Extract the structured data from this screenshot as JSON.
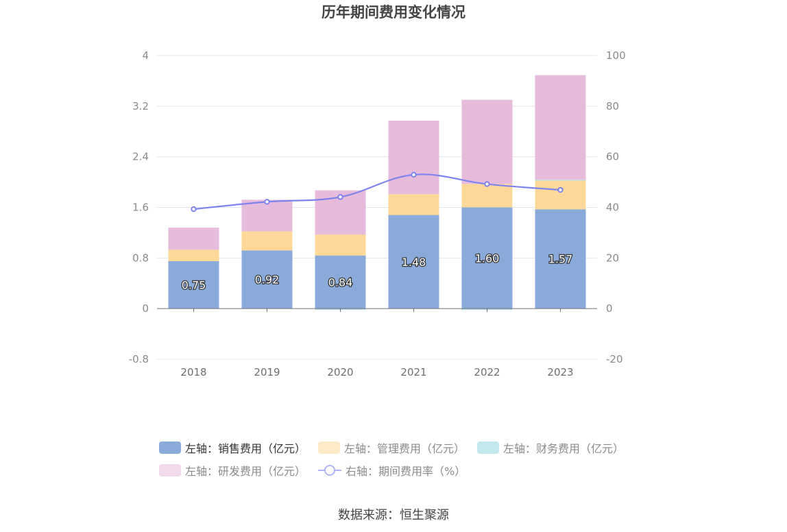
{
  "title": "历年期间费用变化情况",
  "source": "数据来源：恒生聚源",
  "colors": {
    "sales": "#8aabda",
    "admin": "#fed899",
    "finance": "#b6e3e9",
    "rd": "#e7bbdb",
    "rate": "#7d83ee",
    "axis": "#6e7079",
    "grid": "#e0e6f1"
  },
  "chart_data": {
    "type": "bar",
    "stacked": true,
    "title": "历年期间费用变化情况",
    "categories": [
      "2018",
      "2019",
      "2020",
      "2021",
      "2022",
      "2023"
    ],
    "series": [
      {
        "name": "左轴：销售费用（亿元）",
        "axis": "left",
        "values": [
          0.75,
          0.92,
          0.84,
          1.48,
          1.6,
          1.57
        ],
        "labels": [
          "0.75",
          "0.92",
          "0.84",
          "1.48",
          "1.60",
          "1.57"
        ]
      },
      {
        "name": "左轴：管理费用（亿元）",
        "axis": "left",
        "values": [
          0.18,
          0.3,
          0.33,
          0.33,
          0.37,
          0.46
        ]
      },
      {
        "name": "左轴：财务费用（亿元）",
        "axis": "left",
        "values": [
          0.0,
          0.0,
          -0.02,
          0.0,
          -0.02,
          0.01
        ]
      },
      {
        "name": "左轴：研发费用（亿元）",
        "axis": "left",
        "values": [
          0.35,
          0.5,
          0.7,
          1.16,
          1.33,
          1.65
        ]
      },
      {
        "name": "右轴：期间费用率（%）",
        "axis": "right",
        "type": "line",
        "values": [
          39.3,
          42.2,
          44.1,
          52.9,
          49.2,
          46.9
        ]
      }
    ],
    "left_axis": {
      "ylim": [
        -0.8,
        4
      ],
      "ticks": [
        "-0.8",
        "0",
        "0.8",
        "1.6",
        "2.4",
        "3.2",
        "4"
      ]
    },
    "right_axis": {
      "ylim": [
        -20,
        100
      ],
      "ticks": [
        "-20",
        "0",
        "20",
        "40",
        "60",
        "80",
        "100"
      ]
    },
    "legend_position": "bottom"
  }
}
